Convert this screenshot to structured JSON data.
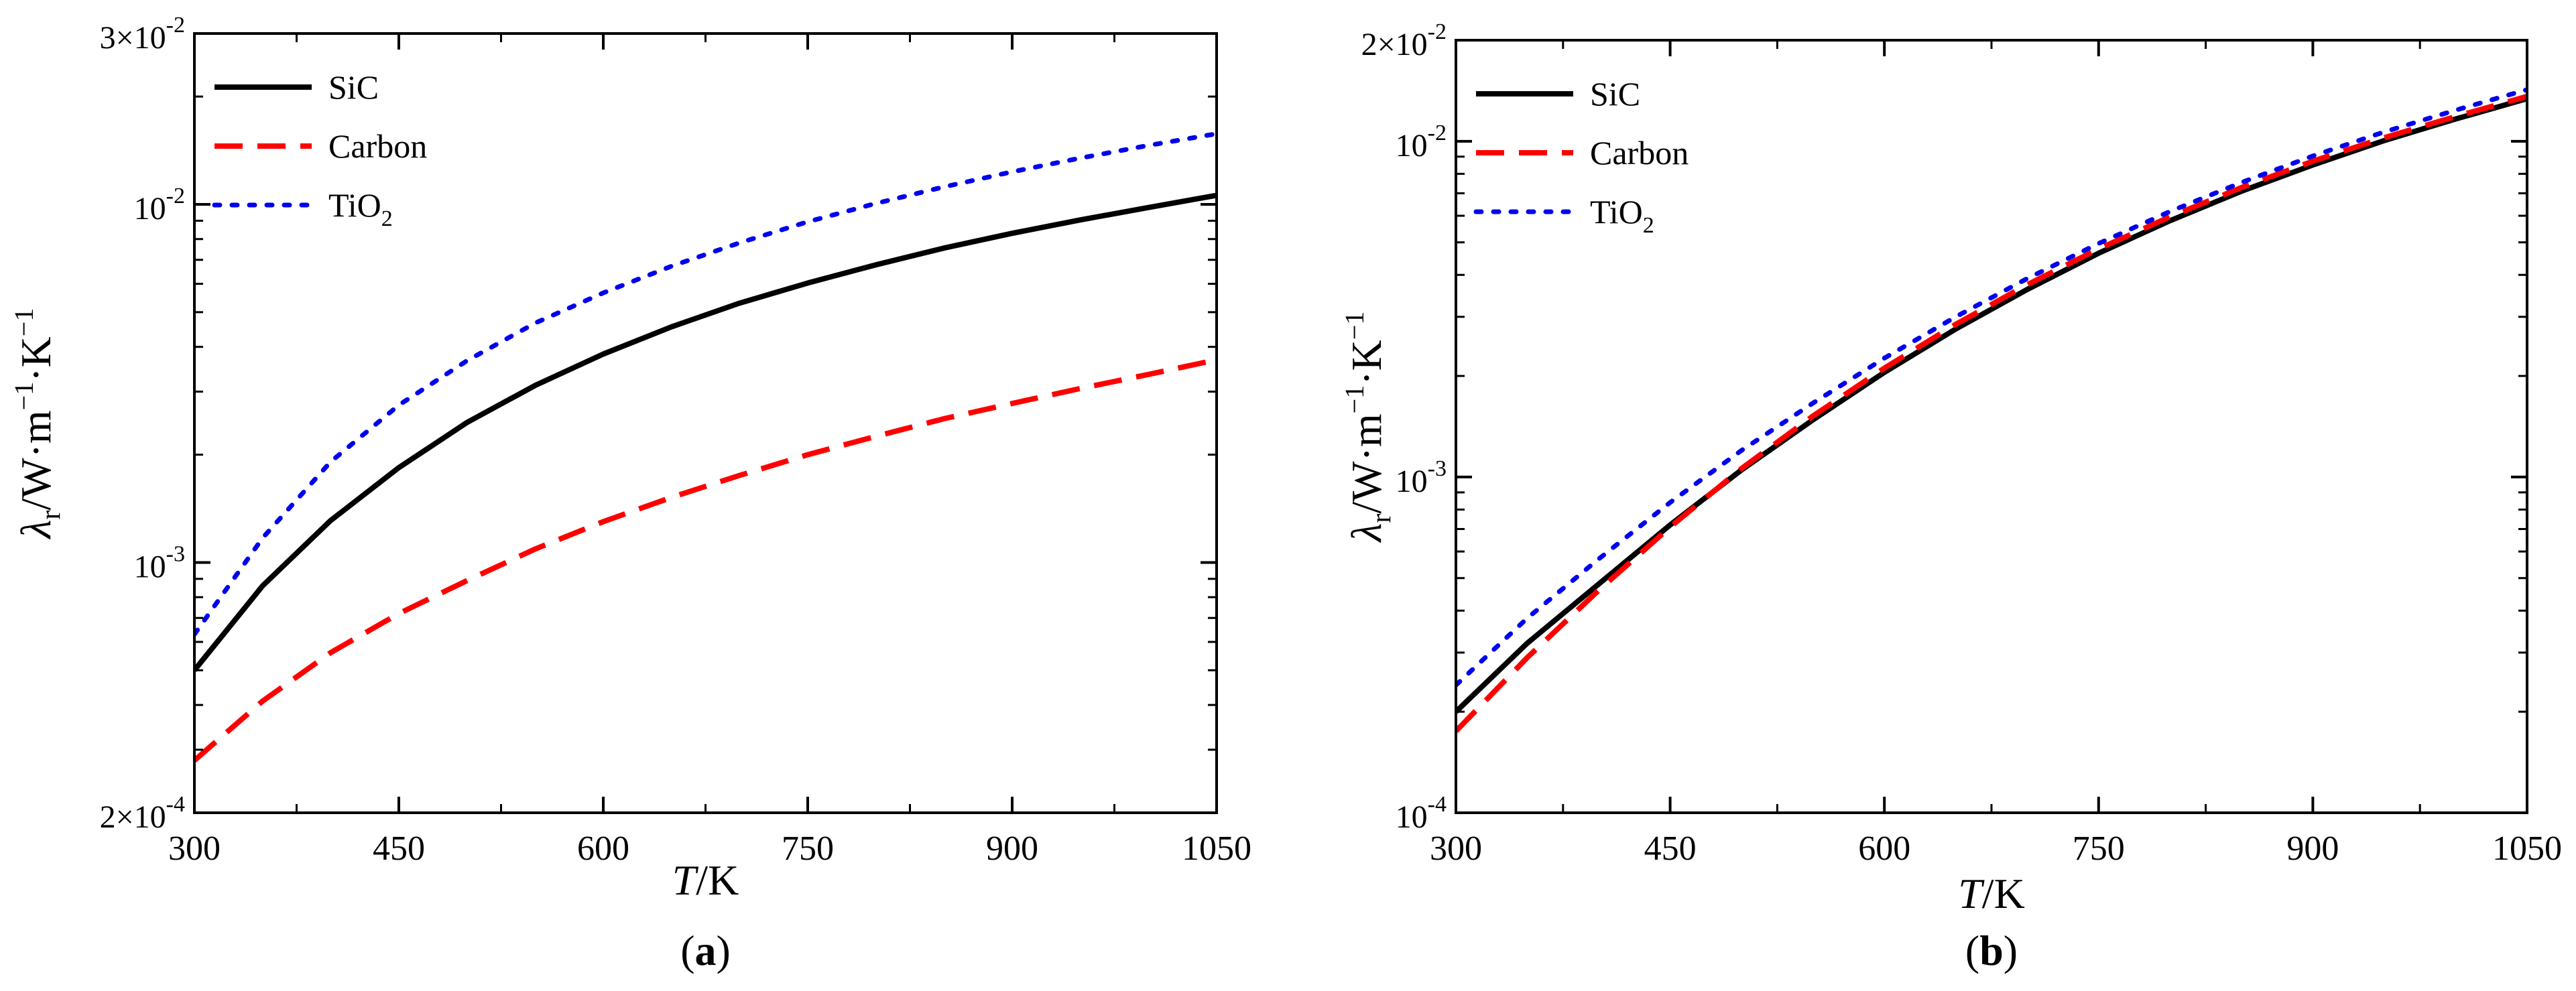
{
  "chart_data": [
    {
      "panel": "a",
      "panel_label": {
        "open": "(",
        "letter": "a",
        "close": ")"
      },
      "type": "line",
      "xscale": "linear",
      "yscale": "log",
      "xlabel": {
        "var": "T",
        "unit": "/K"
      },
      "ylabel": {
        "main": "λ",
        "sub": "r",
        "rest": "/W·m",
        "sup1": "−1",
        "mid": "·K",
        "sup2": "−1"
      },
      "xlim": [
        300,
        1050
      ],
      "ylim": [
        0.0002,
        0.03
      ],
      "xticks": [
        300,
        450,
        600,
        750,
        900,
        1050
      ],
      "xtick_labels": [
        "300",
        "450",
        "600",
        "750",
        "900",
        "1050"
      ],
      "yticks": [
        {
          "value": 0.03,
          "mantissa": "3×10",
          "exponent": "-2"
        },
        {
          "value": 0.01,
          "mantissa": "10",
          "exponent": "-2"
        },
        {
          "value": 0.001,
          "mantissa": "10",
          "exponent": "-3"
        },
        {
          "value": 0.0002,
          "mantissa": "2×10",
          "exponent": "-4"
        }
      ],
      "legend_position": "top-left",
      "series": [
        {
          "name": "SiC",
          "label": "SiC",
          "label_sub": "",
          "color": "#000000",
          "style": "solid",
          "x": [
            300,
            350,
            400,
            450,
            500,
            550,
            600,
            650,
            700,
            750,
            800,
            850,
            900,
            950,
            1000,
            1050
          ],
          "values": [
            0.0005,
            0.00086,
            0.00131,
            0.00184,
            0.00246,
            0.00312,
            0.00382,
            0.00455,
            0.0053,
            0.00603,
            0.00678,
            0.00755,
            0.0083,
            0.00905,
            0.0098,
            0.0106
          ]
        },
        {
          "name": "Carbon",
          "label": "Carbon",
          "label_sub": "",
          "color": "#ff0000",
          "style": "dashed",
          "x": [
            300,
            350,
            400,
            450,
            500,
            550,
            600,
            650,
            700,
            750,
            800,
            850,
            900,
            950,
            1000,
            1050
          ],
          "values": [
            0.00028,
            0.00041,
            0.00056,
            0.00072,
            0.00089,
            0.00109,
            0.0013,
            0.00152,
            0.00175,
            0.002,
            0.00225,
            0.00252,
            0.00278,
            0.00306,
            0.00335,
            0.00368
          ]
        },
        {
          "name": "TiO2",
          "label": "TiO",
          "label_sub": "2",
          "color": "#0000ee",
          "style": "dotted",
          "x": [
            300,
            350,
            400,
            450,
            500,
            550,
            600,
            650,
            700,
            750,
            800,
            850,
            900,
            950,
            1000,
            1050
          ],
          "values": [
            0.00063,
            0.00117,
            0.00191,
            0.00275,
            0.00366,
            0.00466,
            0.00566,
            0.00672,
            0.00781,
            0.00894,
            0.01006,
            0.01119,
            0.01233,
            0.01347,
            0.01461,
            0.01575
          ]
        }
      ]
    },
    {
      "panel": "b",
      "panel_label": {
        "open": "(",
        "letter": "b",
        "close": ")"
      },
      "type": "line",
      "xscale": "linear",
      "yscale": "log",
      "xlabel": {
        "var": "T",
        "unit": "/K"
      },
      "ylabel": {
        "main": "λ",
        "sub": "r",
        "rest": "/W·m",
        "sup1": "−1",
        "mid": "·K",
        "sup2": "−1"
      },
      "xlim": [
        300,
        1050
      ],
      "ylim": [
        0.0001,
        0.02
      ],
      "xticks": [
        300,
        450,
        600,
        750,
        900,
        1050
      ],
      "xtick_labels": [
        "300",
        "450",
        "600",
        "750",
        "900",
        "1050"
      ],
      "yticks": [
        {
          "value": 0.02,
          "mantissa": "2×10",
          "exponent": "-2"
        },
        {
          "value": 0.01,
          "mantissa": "10",
          "exponent": "-2"
        },
        {
          "value": 0.001,
          "mantissa": "10",
          "exponent": "-3"
        },
        {
          "value": 0.0001,
          "mantissa": "10",
          "exponent": "-4"
        }
      ],
      "legend_position": "top-left",
      "series": [
        {
          "name": "SiC",
          "label": "SiC",
          "label_sub": "",
          "color": "#000000",
          "style": "solid",
          "x": [
            300,
            350,
            400,
            450,
            500,
            550,
            600,
            650,
            700,
            750,
            800,
            850,
            900,
            950,
            1000,
            1050
          ],
          "values": [
            0.0002,
            0.00032,
            0.00048,
            0.00072,
            0.00105,
            0.00148,
            0.00205,
            0.00276,
            0.00362,
            0.00464,
            0.0058,
            0.0071,
            0.0085,
            0.01005,
            0.01165,
            0.0134
          ]
        },
        {
          "name": "Carbon",
          "label": "Carbon",
          "label_sub": "",
          "color": "#ff0000",
          "style": "dashed",
          "x": [
            300,
            350,
            400,
            450,
            500,
            550,
            600,
            650,
            700,
            750,
            800,
            850,
            900,
            950,
            1000,
            1050
          ],
          "values": [
            0.000175,
            0.00029,
            0.00046,
            0.00071,
            0.00106,
            0.00152,
            0.00211,
            0.00285,
            0.00374,
            0.00478,
            0.00596,
            0.00728,
            0.00872,
            0.01025,
            0.01185,
            0.0136
          ]
        },
        {
          "name": "TiO2",
          "label": "TiO",
          "label_sub": "2",
          "color": "#0000ee",
          "style": "dotted",
          "x": [
            300,
            350,
            400,
            450,
            500,
            550,
            600,
            650,
            700,
            750,
            800,
            850,
            900,
            950,
            1000,
            1050
          ],
          "values": [
            0.00024,
            0.00038,
            0.00057,
            0.00084,
            0.0012,
            0.00166,
            0.00226,
            0.003,
            0.0039,
            0.00496,
            0.00618,
            0.00754,
            0.00904,
            0.01066,
            0.01238,
            0.01425
          ]
        }
      ]
    }
  ]
}
